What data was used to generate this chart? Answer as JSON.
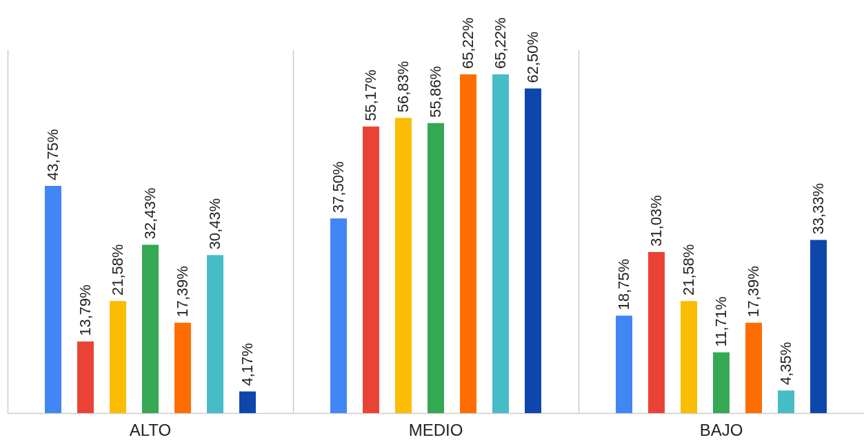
{
  "chart_data": {
    "type": "bar",
    "categories": [
      "ALTO",
      "MEDIO",
      "BAJO"
    ],
    "series": [
      {
        "color": "#4285f4",
        "values": [
          43.75,
          37.5,
          18.75
        ],
        "value_labels": [
          "43,75%",
          "37,50%",
          "18,75%"
        ]
      },
      {
        "color": "#ea4335",
        "values": [
          13.79,
          55.17,
          31.03
        ],
        "value_labels": [
          "13,79%",
          "55,17%",
          "31,03%"
        ]
      },
      {
        "color": "#fbbc04",
        "values": [
          21.58,
          56.83,
          21.58
        ],
        "value_labels": [
          "21,58%",
          "56,83%",
          "21,58%"
        ]
      },
      {
        "color": "#34a853",
        "values": [
          32.43,
          55.86,
          11.71
        ],
        "value_labels": [
          "32,43%",
          "55,86%",
          "11,71%"
        ]
      },
      {
        "color": "#ff6d01",
        "values": [
          17.39,
          65.22,
          17.39
        ],
        "value_labels": [
          "17,39%",
          "65,22%",
          "17,39%"
        ]
      },
      {
        "color": "#46bdc6",
        "values": [
          30.43,
          65.22,
          4.35
        ],
        "value_labels": [
          "30,43%",
          "65,22%",
          "4,35%"
        ]
      },
      {
        "color": "#0e47ab",
        "values": [
          4.17,
          62.5,
          33.33
        ],
        "value_labels": [
          "4,17%",
          "62,50%",
          "33,33%"
        ]
      }
    ],
    "ylim": [
      0,
      70
    ],
    "grid": "x"
  }
}
